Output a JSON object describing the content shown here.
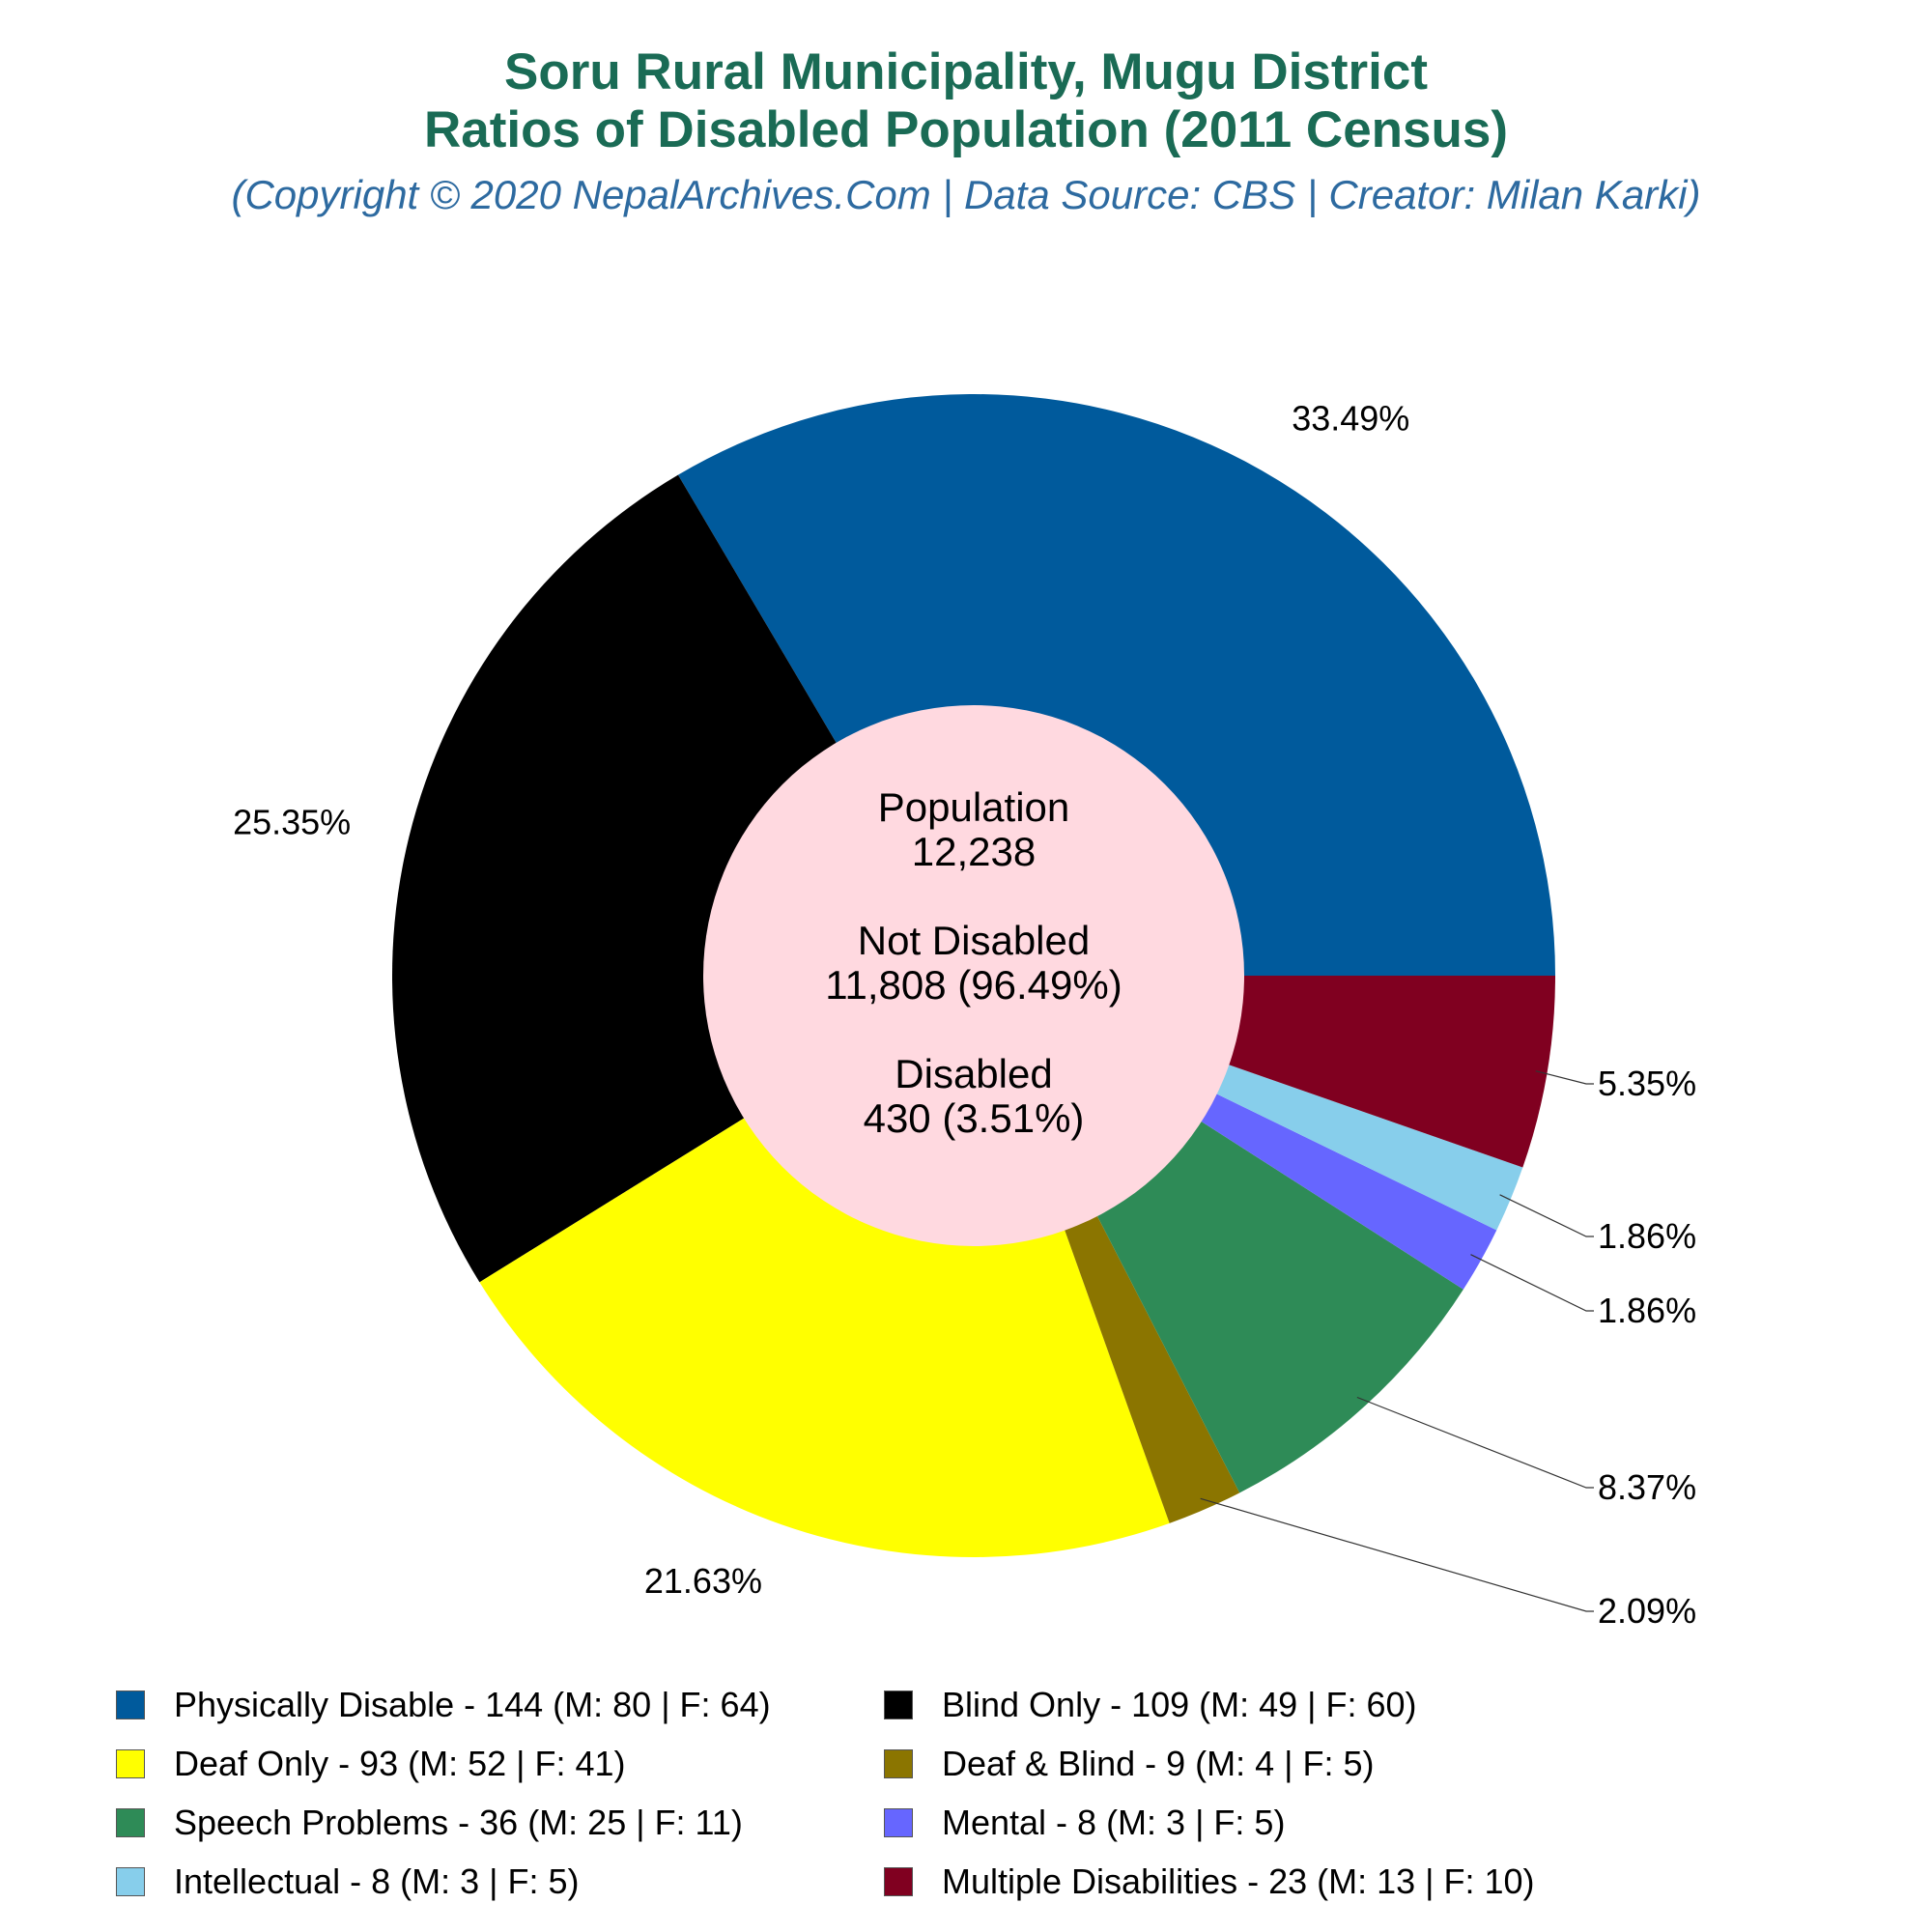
{
  "chart_data": {
    "type": "pie",
    "title": "Soru Rural Municipality, Mugu District",
    "subtitle": "Ratios of Disabled Population (2011 Census)",
    "credit": "(Copyright © 2020 NepalArchives.Com | Data Source: CBS | Creator: Milan Karki)",
    "center_text": [
      "Population",
      "12,238",
      "",
      "Not Disabled",
      "11,808 (96.49%)",
      "",
      "Disabled",
      "430 (3.51%)"
    ],
    "slices": [
      {
        "label": "Physically Disable - 144 (M: 80 | F: 64)",
        "value": 144,
        "percent_label": "33.49%",
        "color": "#005a9c"
      },
      {
        "label": "Blind Only - 109 (M: 49 | F: 60)",
        "value": 109,
        "percent_label": "25.35%",
        "color": "#000000"
      },
      {
        "label": "Deaf Only - 93 (M: 52 | F: 41)",
        "value": 93,
        "percent_label": "21.63%",
        "color": "#ffff00"
      },
      {
        "label": "Deaf & Blind - 9 (M: 4 | F: 5)",
        "value": 9,
        "percent_label": "2.09%",
        "color": "#8b7500"
      },
      {
        "label": "Speech Problems - 36 (M: 25 | F: 11)",
        "value": 36,
        "percent_label": "8.37%",
        "color": "#2e8b57"
      },
      {
        "label": "Mental - 8 (M: 3 | F: 5)",
        "value": 8,
        "percent_label": "1.86%",
        "color": "#6666ff"
      },
      {
        "label": "Intellectual - 8 (M: 3 | F: 5)",
        "value": 8,
        "percent_label": "1.86%",
        "color": "#87ceeb"
      },
      {
        "label": "Multiple Disabilities - 23 (M: 13 | F: 10)",
        "value": 23,
        "percent_label": "5.35%",
        "color": "#800020"
      }
    ],
    "legend_order": [
      0,
      1,
      2,
      3,
      4,
      5,
      6,
      7
    ],
    "center_color": "#ffd9e0"
  }
}
